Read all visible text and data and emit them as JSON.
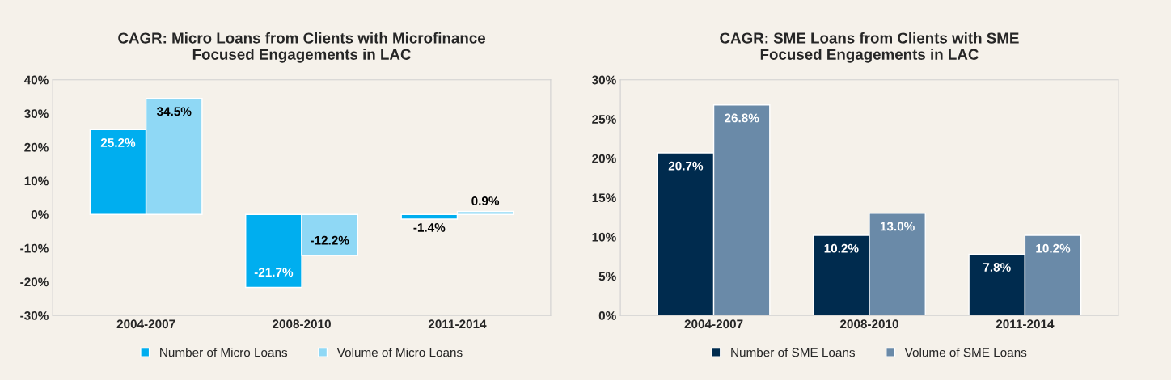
{
  "chart_data": [
    {
      "type": "bar",
      "title": "CAGR: Micro Loans from Clients with Microfinance\nFocused Engagements in LAC",
      "categories": [
        "2004-2007",
        "2008-2010",
        "2011-2014"
      ],
      "series": [
        {
          "name": "Number of Micro Loans",
          "color": "#00aeef",
          "values": [
            25.2,
            -21.7,
            -1.4
          ],
          "value_labels": [
            "25.2%",
            "-21.7%",
            "-1.4%"
          ]
        },
        {
          "name": "Volume of Micro Loans",
          "color": "#8fd8f5",
          "values": [
            34.5,
            -12.2,
            0.9
          ],
          "value_labels": [
            "34.5%",
            "-12.2%",
            "0.9%"
          ]
        }
      ],
      "ylim": [
        -30,
        40
      ],
      "yticks": [
        {
          "value": -30,
          "label": "-30%"
        },
        {
          "value": -20,
          "label": "-20%"
        },
        {
          "value": -10,
          "label": "-10%"
        },
        {
          "value": 0,
          "label": "0%"
        },
        {
          "value": 10,
          "label": "10%"
        },
        {
          "value": 20,
          "label": "20%"
        },
        {
          "value": 30,
          "label": "30%"
        },
        {
          "value": 40,
          "label": "40%"
        }
      ],
      "grid": false,
      "legend": "bottom"
    },
    {
      "type": "bar",
      "title": "CAGR: SME Loans from Clients with SME\nFocused Engagements in LAC",
      "categories": [
        "2004-2007",
        "2008-2010",
        "2011-2014"
      ],
      "series": [
        {
          "name": "Number of SME Loans",
          "color": "#002b4e",
          "values": [
            20.7,
            10.2,
            7.8
          ],
          "value_labels": [
            "20.7%",
            "10.2%",
            "7.8%"
          ]
        },
        {
          "name": "Volume of SME Loans",
          "color": "#6a8aa8",
          "values": [
            26.8,
            13.0,
            10.2
          ],
          "value_labels": [
            "26.8%",
            "13.0%",
            "10.2%"
          ]
        }
      ],
      "ylim": [
        0,
        30
      ],
      "yticks": [
        {
          "value": 0,
          "label": "0%"
        },
        {
          "value": 5,
          "label": "5%"
        },
        {
          "value": 10,
          "label": "10%"
        },
        {
          "value": 15,
          "label": "15%"
        },
        {
          "value": 20,
          "label": "20%"
        },
        {
          "value": 25,
          "label": "25%"
        },
        {
          "value": 30,
          "label": "30%"
        }
      ],
      "grid": false,
      "legend": "bottom"
    }
  ]
}
